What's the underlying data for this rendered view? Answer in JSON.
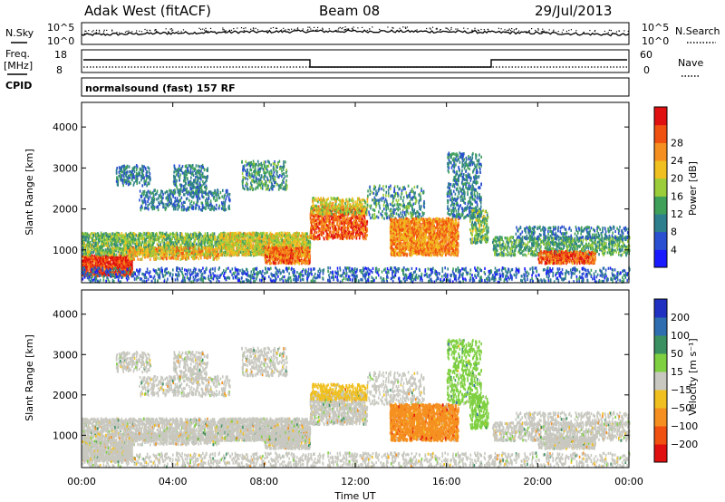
{
  "header": {
    "station": "Adak West (fitACF)",
    "beam": "Beam 08",
    "date": "29/Jul/2013"
  },
  "panels": {
    "nsky_label": "N.Sky",
    "nsearch_label": "N.Search",
    "freq_label_1": "Freq.",
    "freq_label_2": "[MHz]",
    "nave_label": "Nave",
    "cpid_label": "CPID",
    "cpid_value": "normalsound (fast) 157 RF",
    "nsky_ticks_left": [
      "10^5",
      "10^0"
    ],
    "nsky_ticks_right": [
      "10^5",
      "10^0"
    ],
    "freq_ticks": [
      "18",
      "8"
    ],
    "nave_ticks": [
      "60",
      "0"
    ]
  },
  "chart_data": [
    {
      "type": "heatmap",
      "name": "power",
      "ylabel": "Slant Range [km]",
      "yticks": [
        "1000",
        "2000",
        "3000",
        "4000"
      ],
      "ylim": [
        200,
        4600
      ],
      "xlim": [
        "00:00",
        "24:00"
      ],
      "colorbar_label": "Power [dB]",
      "colorbar_ticks": [
        "4",
        "8",
        "12",
        "16",
        "20",
        "24",
        "28"
      ],
      "colorbar_colors": [
        "#1a1aff",
        "#2a4fd0",
        "#2e7f8e",
        "#3fa05a",
        "#9bcd3a",
        "#f0c020",
        "#f59020",
        "#f05010",
        "#e01010"
      ]
    },
    {
      "type": "heatmap",
      "name": "velocity",
      "ylabel": "Slant Range [km]",
      "yticks": [
        "1000",
        "2000",
        "3000",
        "4000"
      ],
      "ylim": [
        200,
        4600
      ],
      "xlim": [
        "00:00",
        "24:00"
      ],
      "colorbar_label": "Velocity [m s⁻¹]",
      "colorbar_ticks": [
        "200",
        "100",
        "50",
        "15",
        "−15",
        "−50",
        "−100",
        "−200"
      ],
      "colorbar_colors": [
        "#2030c0",
        "#2e6eb0",
        "#3a9060",
        "#7ed040",
        "#c8c8c0",
        "#f0c020",
        "#f59020",
        "#f05010",
        "#e01010"
      ]
    }
  ],
  "xaxis": {
    "ticks": [
      "00:00",
      "04:00",
      "08:00",
      "12:00",
      "16:00",
      "20:00",
      "00:00"
    ],
    "label": "Time UT"
  }
}
